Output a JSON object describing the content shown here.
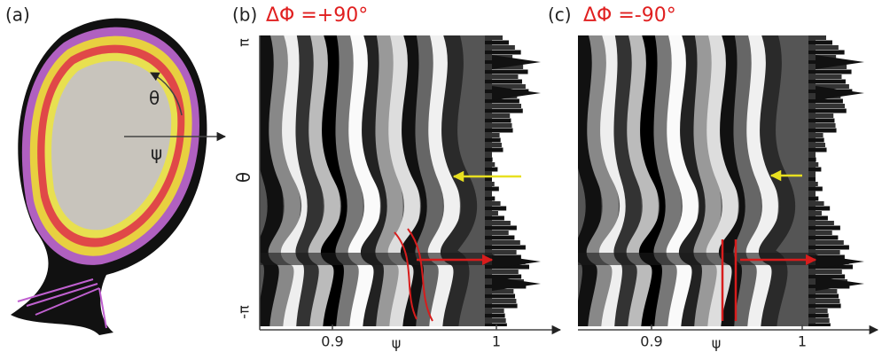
{
  "panels": [
    {
      "label": "(a)",
      "annotations": [
        "θ",
        "ψ"
      ]
    },
    {
      "label": "(b)",
      "title": "ΔΦ =+90°",
      "y_axis": {
        "label": "θ",
        "top": "π",
        "bottom": "-π"
      },
      "x_axis": {
        "label": "ψ",
        "ticks": [
          0.9,
          1
        ]
      }
    },
    {
      "label": "(c)",
      "title": "ΔΦ =-90°",
      "x_axis": {
        "label": "ψ",
        "ticks": [
          0.9,
          1
        ]
      }
    }
  ]
}
